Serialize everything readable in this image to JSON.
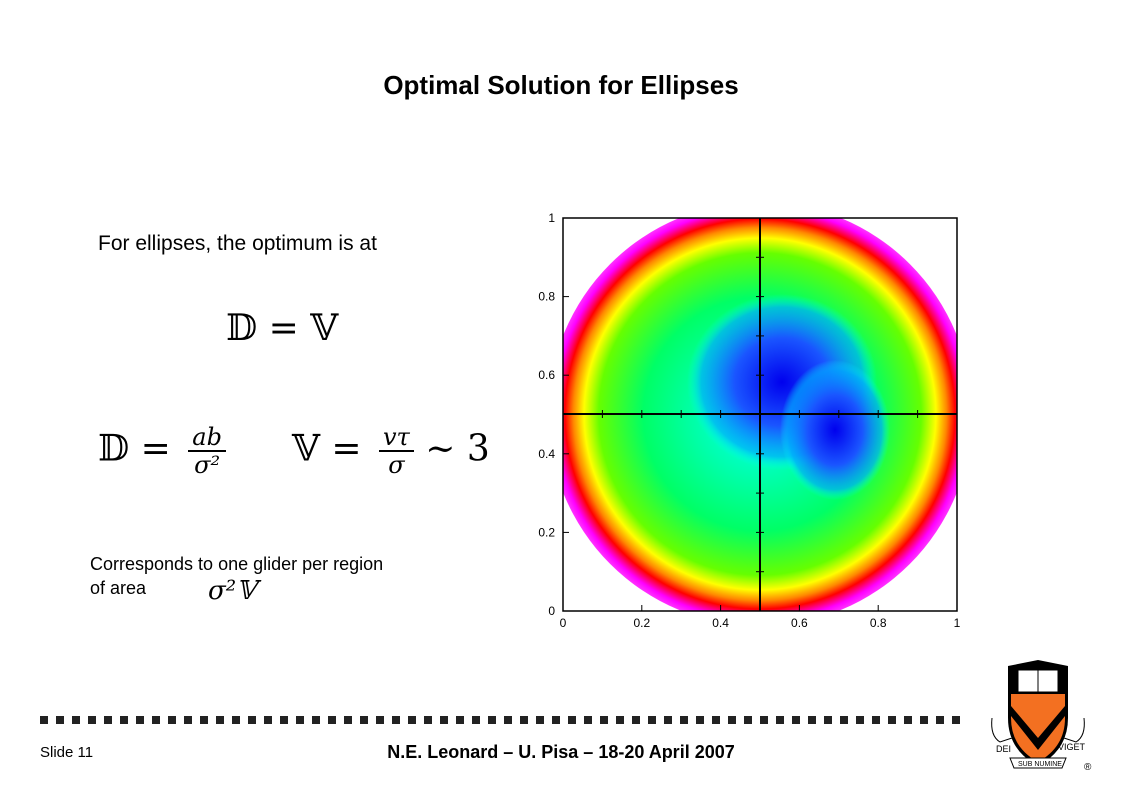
{
  "slide": {
    "title": "Optimal Solution for Ellipses",
    "intro": "For ellipses, the optimum is at",
    "eq_main": "𝔻 = 𝕍",
    "eq_d_lhs": "𝔻 =",
    "eq_d_num": "ab",
    "eq_d_den": "σ²",
    "eq_v_lhs": "𝕍 =",
    "eq_v_num": "vτ",
    "eq_v_den": "σ",
    "eq_v_rhs": "∼ 3",
    "corresponds_line1": "Corresponds to one glider per region",
    "corresponds_line2": "of area",
    "area_symbol": "σ²𝕍",
    "slide_number": "Slide 11",
    "footer": "N.E. Leonard – U. Pisa – 18-20 April 2007"
  },
  "plot": {
    "x_ticks": [
      "0",
      "0.2",
      "0.4",
      "0.6",
      "0.8",
      "1"
    ],
    "y_ticks": [
      "0",
      "0.2",
      "0.4",
      "0.6",
      "0.8",
      "1"
    ],
    "colors": {
      "ring_magenta": "#ff00ff",
      "ring_red": "#ff0000",
      "ring_yellow": "#ffff00",
      "green": "#00ff00",
      "cyan": "#00ffff",
      "blue": "#0000ff"
    }
  },
  "crest": {
    "top_text": "DEI",
    "right_text": "VIGET",
    "motto": "SUB NUMINE",
    "registered": "®",
    "colors": {
      "orange": "#f37021",
      "black": "#000000"
    }
  }
}
